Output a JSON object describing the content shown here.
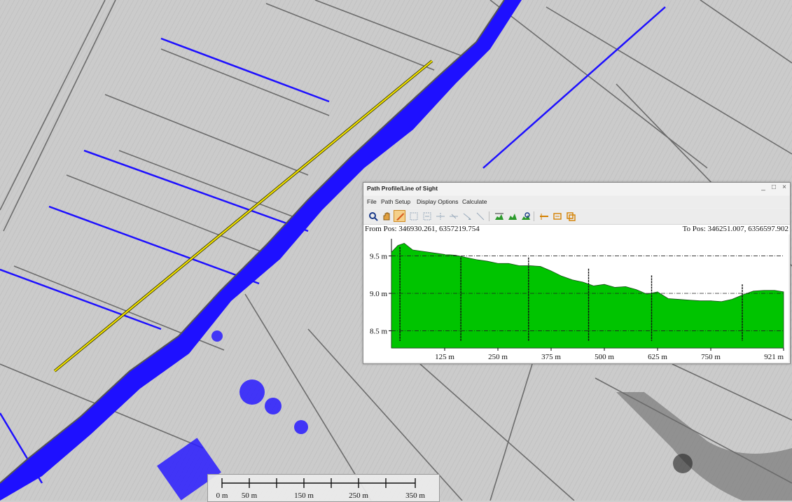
{
  "window": {
    "title": "Path Profile/Line of Sight",
    "controls": {
      "minimize": "_",
      "maximize": "□",
      "close": "×"
    },
    "menu": [
      "File",
      "Path Setup",
      "Display Options",
      "Calculate"
    ],
    "toolbar_icons": [
      "select-tool-icon",
      "pan-hand-icon",
      "ruler-edit-icon",
      "grid-snap-icon",
      "fit-extent-icon",
      "add-node-icon",
      "remove-node-icon",
      "pointer-icon",
      "draw-line-icon",
      "terrain-profile-icon",
      "terrain-fill-icon",
      "terrain-zoom-icon",
      "line-of-sight-icon",
      "export-icon",
      "copy-icon"
    ],
    "from_pos": "From Pos: 346930.261, 6357219.754",
    "to_pos": "To Pos: 346251.007, 6356597.902"
  },
  "chart_data": {
    "type": "area",
    "title": "",
    "xlabel": "",
    "ylabel": "",
    "x_ticks": [
      "125 m",
      "250 m",
      "375 m",
      "500 m",
      "625 m",
      "750 m",
      "921 m"
    ],
    "y_ticks": [
      "9.5 m",
      "9.0 m",
      "8.5 m"
    ],
    "xlim": [
      0,
      921
    ],
    "ylim": [
      8.27,
      9.73
    ],
    "grid": "dash-dot horizontal lines at y ticks",
    "color": "#00c400",
    "series": [
      {
        "x": [
          0,
          15,
          30,
          50,
          75,
          100,
          125,
          150,
          175,
          200,
          225,
          250,
          275,
          300,
          325,
          350,
          375,
          400,
          425,
          450,
          475,
          500,
          525,
          550,
          575,
          600,
          625,
          650,
          675,
          700,
          725,
          750,
          775,
          800,
          825,
          850,
          875,
          900,
          921
        ],
        "y": [
          9.55,
          9.64,
          9.67,
          9.58,
          9.56,
          9.54,
          9.52,
          9.51,
          9.48,
          9.45,
          9.43,
          9.4,
          9.4,
          9.37,
          9.37,
          9.36,
          9.3,
          9.23,
          9.18,
          9.15,
          9.1,
          9.12,
          9.08,
          9.09,
          9.05,
          8.99,
          9.02,
          8.93,
          8.92,
          8.91,
          8.9,
          8.9,
          8.89,
          8.92,
          8.98,
          9.03,
          9.04,
          9.04,
          9.02
        ]
      }
    ],
    "spikes": [
      {
        "x": 20,
        "y": 9.62
      },
      {
        "x": 163,
        "y": 9.48
      },
      {
        "x": 322,
        "y": 9.48
      },
      {
        "x": 463,
        "y": 9.33
      },
      {
        "x": 611,
        "y": 9.24
      },
      {
        "x": 824,
        "y": 9.12
      }
    ]
  },
  "map": {
    "scalebar": {
      "labels": [
        "0 m",
        "50 m",
        "150 m",
        "250 m",
        "350 m"
      ]
    },
    "colors": {
      "water": "#1e10ff",
      "profile_line": "#e8e000",
      "terrain": "#cfcfcf"
    }
  }
}
